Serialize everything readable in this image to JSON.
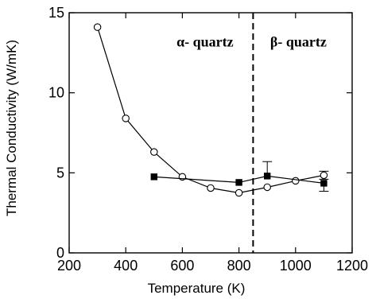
{
  "chart_data": {
    "type": "line",
    "xlabel": "Temperature (K)",
    "ylabel": "Thermal Conductivity (W/mK)",
    "xlim": [
      200,
      1200
    ],
    "ylim": [
      0,
      15
    ],
    "x_ticks": [
      200,
      400,
      600,
      800,
      1000,
      1200
    ],
    "y_ticks": [
      0,
      5,
      10,
      15
    ],
    "grid": false,
    "legend": "none",
    "series": [
      {
        "marker": "open-circle",
        "x": [
          300,
          400,
          500,
          600,
          700,
          800,
          900,
          1000,
          1100
        ],
        "y": [
          14.1,
          8.4,
          6.3,
          4.75,
          4.05,
          3.75,
          4.1,
          4.5,
          4.85
        ],
        "error_low": [
          0,
          0,
          0,
          0,
          0,
          0,
          0,
          0,
          0.25
        ],
        "error_high": [
          0,
          0,
          0,
          0,
          0,
          0,
          0,
          0,
          0.25
        ]
      },
      {
        "marker": "filled-square",
        "x": [
          500,
          800,
          900,
          1100
        ],
        "y": [
          4.75,
          4.4,
          4.8,
          4.35
        ],
        "error_low": [
          0,
          0,
          0,
          0.5
        ],
        "error_high": [
          0,
          0,
          0.9,
          0
        ]
      }
    ],
    "annotations": [
      {
        "text": "α- quartz",
        "x": 680,
        "y": 12.9
      },
      {
        "text": "β- quartz",
        "x": 1010,
        "y": 12.9
      }
    ],
    "vline": {
      "x": 850,
      "style": "dashed"
    },
    "colors": {
      "line": "#000000",
      "marker_fill": "#000000",
      "open_fill": "#ffffff"
    }
  }
}
